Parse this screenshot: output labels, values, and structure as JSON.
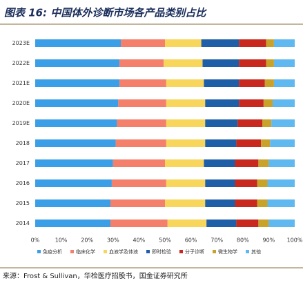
{
  "chart_data": {
    "type": "stacked-barh",
    "title": "图表 16:  中国体外诊断市场各产品类别占比",
    "categories": [
      "2023E",
      "2022E",
      "2021E",
      "2020E",
      "2019E",
      "2018",
      "2017",
      "2016",
      "2015",
      "2014"
    ],
    "series": [
      {
        "name": "免疫分析",
        "color": "#3a9fe6",
        "values": [
          33,
          32.5,
          32.5,
          32,
          31.5,
          31,
          30,
          29.5,
          29,
          29
        ]
      },
      {
        "name": "临床化学",
        "color": "#f47f6b",
        "values": [
          17,
          17,
          18,
          18.5,
          19,
          19.5,
          20,
          21,
          21,
          22
        ]
      },
      {
        "name": "血液学及体液",
        "color": "#f8d65c",
        "values": [
          14,
          15,
          14.5,
          15,
          15,
          15,
          15,
          15,
          15.5,
          15
        ]
      },
      {
        "name": "即时检验",
        "color": "#1f5fa8",
        "values": [
          14.5,
          14,
          13.5,
          13,
          12.5,
          12,
          12,
          11.5,
          11.5,
          11.5
        ]
      },
      {
        "name": "分子诊断",
        "color": "#c8281e",
        "values": [
          10.5,
          10.5,
          10,
          9.5,
          9.5,
          9.5,
          9,
          8.5,
          8.5,
          8.5
        ]
      },
      {
        "name": "微生物学",
        "color": "#c9a22a",
        "values": [
          3,
          3,
          3.5,
          3.5,
          3.5,
          3.5,
          4,
          4,
          4,
          4
        ]
      },
      {
        "name": "其他",
        "color": "#5fb8f0",
        "values": [
          8,
          8,
          8,
          8.5,
          9,
          9.5,
          10,
          10.5,
          10.5,
          10
        ]
      }
    ],
    "xlim": [
      0,
      100
    ],
    "xticks": [
      {
        "value": 0,
        "label": "0%"
      },
      {
        "value": 10,
        "label": "10%"
      },
      {
        "value": 20,
        "label": "20%"
      },
      {
        "value": 30,
        "label": "30%"
      },
      {
        "value": 40,
        "label": "40%"
      },
      {
        "value": 50,
        "label": "50%"
      },
      {
        "value": 60,
        "label": "60%"
      },
      {
        "value": 70,
        "label": "70%"
      },
      {
        "value": 80,
        "label": "80%"
      },
      {
        "value": 90,
        "label": "90%"
      },
      {
        "value": 100,
        "label": "100%"
      }
    ],
    "legend": "bottom"
  },
  "source": "来源：Frost & Sullivan，华检医疗招股书，国金证券研究所"
}
